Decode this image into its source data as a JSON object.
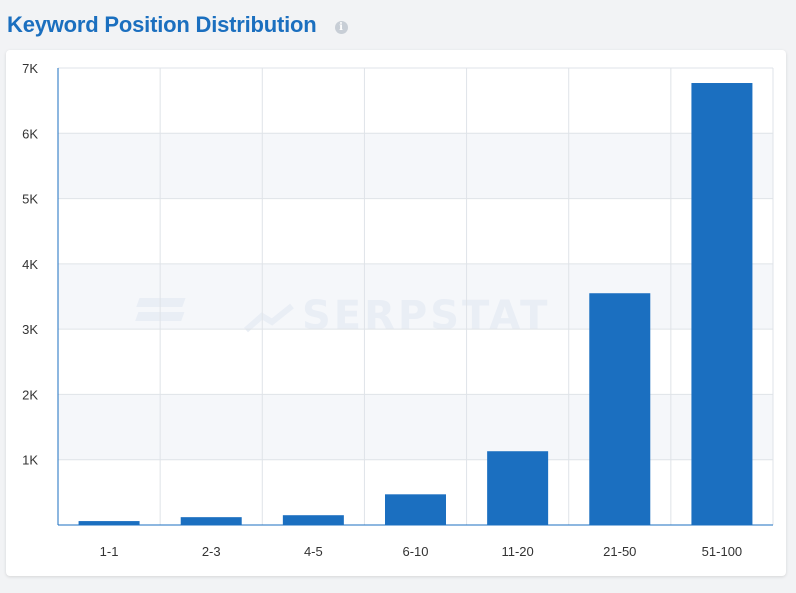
{
  "header": {
    "title": "Keyword Position Distribution",
    "info_icon": "info-icon"
  },
  "watermark": {
    "text": "SERPSTAT"
  },
  "colors": {
    "bar": "#1b6fc0",
    "accent": "#1b6fbf"
  },
  "chart_data": {
    "type": "bar",
    "categories": [
      "1-1",
      "2-3",
      "4-5",
      "6-10",
      "11-20",
      "21-50",
      "51-100"
    ],
    "values": [
      60,
      120,
      150,
      470,
      1130,
      3550,
      6770
    ],
    "ylim": [
      0,
      7000
    ],
    "yticks": [
      0,
      1000,
      2000,
      3000,
      4000,
      5000,
      6000,
      7000
    ],
    "ytick_labels": [
      "",
      "1K",
      "2K",
      "3K",
      "4K",
      "5K",
      "6K",
      "7K"
    ],
    "grid": true,
    "legend": "none"
  }
}
